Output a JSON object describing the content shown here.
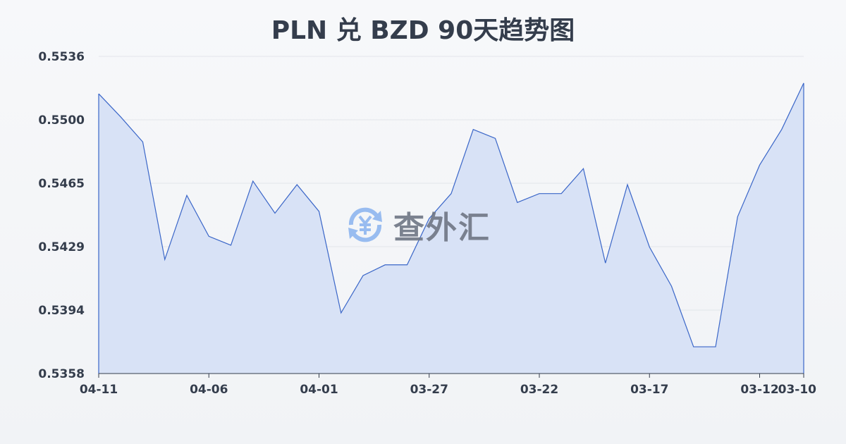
{
  "chart_data": {
    "type": "area",
    "title": "PLN 兑 BZD 90天趋势图",
    "xlabel": "",
    "ylabel": "",
    "x": [
      "04-11",
      "04-10",
      "04-09",
      "04-08",
      "04-07",
      "04-06",
      "04-05",
      "04-04",
      "04-03",
      "04-02",
      "04-01",
      "03-31",
      "03-30",
      "03-29",
      "03-28",
      "03-27",
      "03-26",
      "03-25",
      "03-24",
      "03-23",
      "03-22",
      "03-21",
      "03-20",
      "03-19",
      "03-18",
      "03-17",
      "03-16",
      "03-15",
      "03-14",
      "03-13",
      "03-12",
      "03-11",
      "03-10"
    ],
    "x_tick_labels": [
      "04-11",
      "04-06",
      "04-01",
      "03-27",
      "03-22",
      "03-17",
      "03-12",
      "03-10"
    ],
    "y_tick_labels": [
      "0.5358",
      "0.5394",
      "0.5429",
      "0.5465",
      "0.5500",
      "0.5536"
    ],
    "ylim": [
      0.5358,
      0.5536
    ],
    "series": [
      {
        "values": [
          0.5515,
          0.5502,
          0.5488,
          0.5422,
          0.5458,
          0.5435,
          0.543,
          0.5466,
          0.5448,
          0.5464,
          0.5449,
          0.5392,
          0.5413,
          0.5419,
          0.5419,
          0.5445,
          0.5459,
          0.5495,
          0.549,
          0.5454,
          0.5459,
          0.5459,
          0.5473,
          0.542,
          0.5464,
          0.5429,
          0.5407,
          0.5373,
          0.5373,
          0.5446,
          0.5475,
          0.5495,
          0.5521
        ]
      }
    ],
    "grid": true,
    "line_color": "#3a66c8",
    "fill_color": "#d6e0f5"
  },
  "watermark": {
    "text": "查外汇",
    "icon": "yen-exchange-icon",
    "icon_color": "#8fb6f0"
  }
}
